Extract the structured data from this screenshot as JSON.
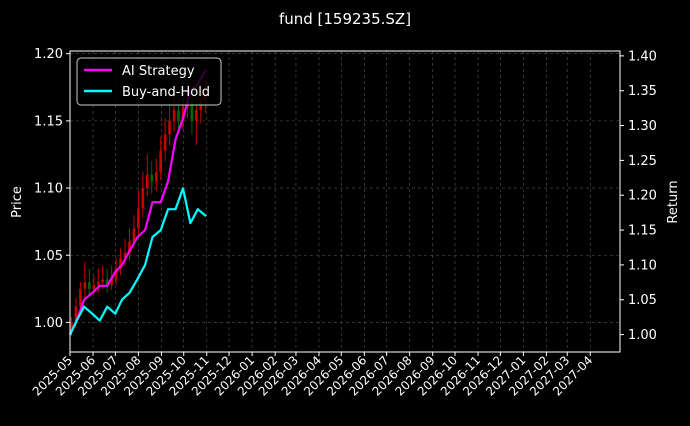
{
  "chart_data": {
    "type": "line",
    "title": "fund [159235.SZ]",
    "xlabel": "",
    "ylabel_left": "Price",
    "ylabel_right": "Return",
    "x_tick_labels": [
      "2025-05",
      "2025-06",
      "2025-07",
      "2025-08",
      "2025-09",
      "2025-10",
      "2025-11",
      "2025-12",
      "2026-01",
      "2026-02",
      "2026-03",
      "2026-04",
      "2026-05",
      "2026-06",
      "2026-07",
      "2026-08",
      "2026-09",
      "2026-10",
      "2026-11",
      "2026-12",
      "2027-01",
      "2027-02",
      "2027-03",
      "2027-04"
    ],
    "xlim": [
      "2025-05-01",
      "2027-05-11"
    ],
    "ylim_left": [
      0.978,
      1.202
    ],
    "yticks_left": [
      "1.00",
      "1.05",
      "1.10",
      "1.15",
      "1.20"
    ],
    "ylim_right": [
      0.975,
      1.407
    ],
    "yticks_right": [
      "1.00",
      "1.05",
      "1.10",
      "1.15",
      "1.20",
      "1.25",
      "1.30",
      "1.35",
      "1.40"
    ],
    "grid": true,
    "legend_position": "upper-left",
    "colors": {
      "background": "#000000",
      "ai_strategy": "#ff00ff",
      "buy_and_hold": "#00ffff",
      "candle_up": "#cc0000",
      "candle_down": "#006600",
      "grid": "#555555",
      "text": "#ffffff"
    },
    "series": [
      {
        "name": "AI Strategy",
        "axis": "right",
        "x": [
          "2025-05-01",
          "2025-05-10",
          "2025-05-20",
          "2025-05-31",
          "2025-06-10",
          "2025-06-20",
          "2025-07-01",
          "2025-07-10",
          "2025-07-20",
          "2025-07-31",
          "2025-08-10",
          "2025-08-20",
          "2025-08-31",
          "2025-09-10",
          "2025-09-20",
          "2025-09-30",
          "2025-10-10",
          "2025-10-20",
          "2025-10-31"
        ],
        "values": [
          1.0,
          1.02,
          1.05,
          1.06,
          1.07,
          1.07,
          1.09,
          1.1,
          1.12,
          1.14,
          1.15,
          1.19,
          1.19,
          1.22,
          1.28,
          1.31,
          1.35,
          1.36,
          1.38
        ]
      },
      {
        "name": "Buy-and-Hold",
        "axis": "right",
        "x": [
          "2025-05-01",
          "2025-05-10",
          "2025-05-20",
          "2025-05-31",
          "2025-06-10",
          "2025-06-20",
          "2025-07-01",
          "2025-07-10",
          "2025-07-20",
          "2025-07-31",
          "2025-08-10",
          "2025-08-20",
          "2025-08-31",
          "2025-09-10",
          "2025-09-20",
          "2025-09-30",
          "2025-10-10",
          "2025-10-20",
          "2025-10-31"
        ],
        "values": [
          1.0,
          1.02,
          1.04,
          1.03,
          1.02,
          1.04,
          1.03,
          1.05,
          1.06,
          1.08,
          1.1,
          1.14,
          1.15,
          1.18,
          1.18,
          1.21,
          1.16,
          1.18,
          1.17
        ]
      }
    ],
    "candles": {
      "axis": "left",
      "x": [
        "2025-05-03",
        "2025-05-09",
        "2025-05-15",
        "2025-05-21",
        "2025-05-27",
        "2025-06-02",
        "2025-06-08",
        "2025-06-14",
        "2025-06-20",
        "2025-06-26",
        "2025-07-02",
        "2025-07-08",
        "2025-07-14",
        "2025-07-20",
        "2025-07-26",
        "2025-08-01",
        "2025-08-07",
        "2025-08-13",
        "2025-08-19",
        "2025-08-25",
        "2025-08-31",
        "2025-09-06",
        "2025-09-12",
        "2025-09-18",
        "2025-09-24",
        "2025-09-30",
        "2025-10-06",
        "2025-10-12",
        "2025-10-18",
        "2025-10-24",
        "2025-10-30"
      ],
      "open": [
        0.994,
        1.0,
        1.012,
        1.025,
        1.03,
        1.025,
        1.028,
        1.03,
        1.032,
        1.028,
        1.032,
        1.04,
        1.048,
        1.052,
        1.06,
        1.07,
        1.085,
        1.1,
        1.11,
        1.105,
        1.112,
        1.128,
        1.14,
        1.15,
        1.158,
        1.15,
        1.16,
        1.165,
        1.15,
        1.158,
        1.165
      ],
      "close": [
        1.0,
        1.012,
        1.025,
        1.03,
        1.025,
        1.028,
        1.03,
        1.032,
        1.028,
        1.032,
        1.04,
        1.048,
        1.052,
        1.06,
        1.07,
        1.085,
        1.1,
        1.11,
        1.105,
        1.112,
        1.128,
        1.14,
        1.15,
        1.158,
        1.15,
        1.16,
        1.165,
        1.15,
        1.158,
        1.165,
        1.17
      ],
      "high": [
        1.004,
        1.018,
        1.03,
        1.045,
        1.04,
        1.035,
        1.04,
        1.042,
        1.04,
        1.042,
        1.048,
        1.055,
        1.062,
        1.07,
        1.08,
        1.098,
        1.112,
        1.125,
        1.12,
        1.122,
        1.138,
        1.152,
        1.162,
        1.168,
        1.165,
        1.172,
        1.178,
        1.172,
        1.168,
        1.175,
        1.18
      ],
      "low": [
        0.99,
        0.996,
        1.008,
        1.018,
        1.02,
        1.02,
        1.022,
        1.025,
        1.022,
        1.024,
        1.028,
        1.035,
        1.042,
        1.046,
        1.055,
        1.064,
        1.078,
        1.094,
        1.096,
        1.098,
        1.106,
        1.12,
        1.132,
        1.142,
        1.142,
        1.144,
        1.152,
        1.14,
        1.132,
        1.148,
        1.156
      ]
    }
  }
}
